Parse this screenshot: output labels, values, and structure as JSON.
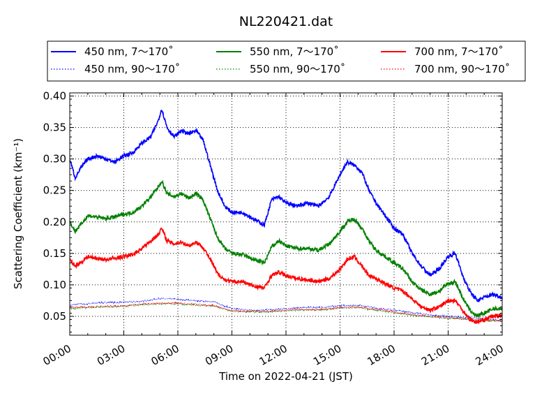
{
  "chart_data": {
    "type": "line",
    "title": "NL220421.dat",
    "xlabel": "Time on 2022-04-21 (JST)",
    "ylabel": "Scattering Coefficient (km⁻¹)",
    "xlim": [
      0,
      24
    ],
    "ylim": [
      0.02,
      0.405
    ],
    "x_ticks": [
      0,
      3,
      6,
      9,
      12,
      15,
      18,
      21,
      24
    ],
    "x_tick_labels": [
      "00:00",
      "03:00",
      "06:00",
      "09:00",
      "12:00",
      "15:00",
      "18:00",
      "21:00",
      "24:00"
    ],
    "y_ticks": [
      0.05,
      0.1,
      0.15,
      0.2,
      0.25,
      0.3,
      0.35,
      0.4
    ],
    "y_tick_labels": [
      "0.05",
      "0.10",
      "0.15",
      "0.20",
      "0.25",
      "0.30",
      "0.35",
      "0.40"
    ],
    "grid": true,
    "legend_position": "top, outside plot",
    "series": [
      {
        "name": "450 nm, 7～170˚",
        "color": "#0000ff",
        "style": "solid",
        "x": [
          0.0,
          0.3,
          0.6,
          1.0,
          1.5,
          2.0,
          2.5,
          3.0,
          3.5,
          4.0,
          4.5,
          4.9,
          5.1,
          5.4,
          5.8,
          6.2,
          6.6,
          7.0,
          7.4,
          7.8,
          8.2,
          8.6,
          9.0,
          9.6,
          10.2,
          10.8,
          11.2,
          11.6,
          12.0,
          12.6,
          13.2,
          13.8,
          14.4,
          15.0,
          15.4,
          15.8,
          16.2,
          16.6,
          17.0,
          17.5,
          18.0,
          18.5,
          19.0,
          19.5,
          20.0,
          20.5,
          21.0,
          21.4,
          21.8,
          22.2,
          22.6,
          23.0,
          23.5,
          24.0
        ],
        "y": [
          0.3,
          0.27,
          0.285,
          0.3,
          0.305,
          0.3,
          0.295,
          0.305,
          0.31,
          0.325,
          0.335,
          0.36,
          0.38,
          0.35,
          0.335,
          0.345,
          0.34,
          0.345,
          0.33,
          0.29,
          0.25,
          0.225,
          0.215,
          0.215,
          0.205,
          0.195,
          0.235,
          0.24,
          0.23,
          0.225,
          0.23,
          0.225,
          0.24,
          0.275,
          0.295,
          0.29,
          0.28,
          0.25,
          0.23,
          0.21,
          0.19,
          0.18,
          0.15,
          0.13,
          0.115,
          0.125,
          0.145,
          0.15,
          0.115,
          0.09,
          0.075,
          0.08,
          0.085,
          0.08
        ]
      },
      {
        "name": "550 nm, 7～170˚",
        "color": "#008000",
        "style": "solid",
        "x": [
          0.0,
          0.3,
          0.6,
          1.0,
          1.5,
          2.0,
          2.5,
          3.0,
          3.5,
          4.0,
          4.5,
          4.9,
          5.1,
          5.4,
          5.8,
          6.2,
          6.6,
          7.0,
          7.4,
          7.8,
          8.2,
          8.6,
          9.0,
          9.6,
          10.2,
          10.8,
          11.2,
          11.6,
          12.0,
          12.6,
          13.2,
          13.8,
          14.4,
          15.0,
          15.4,
          15.8,
          16.2,
          16.6,
          17.0,
          17.5,
          18.0,
          18.5,
          19.0,
          19.5,
          20.0,
          20.5,
          21.0,
          21.4,
          21.8,
          22.2,
          22.6,
          23.0,
          23.5,
          24.0
        ],
        "y": [
          0.2,
          0.185,
          0.195,
          0.21,
          0.208,
          0.205,
          0.208,
          0.212,
          0.215,
          0.225,
          0.24,
          0.255,
          0.265,
          0.245,
          0.24,
          0.245,
          0.238,
          0.245,
          0.235,
          0.205,
          0.175,
          0.158,
          0.15,
          0.148,
          0.14,
          0.135,
          0.16,
          0.17,
          0.162,
          0.158,
          0.158,
          0.155,
          0.165,
          0.185,
          0.2,
          0.205,
          0.19,
          0.17,
          0.155,
          0.145,
          0.135,
          0.125,
          0.105,
          0.092,
          0.085,
          0.09,
          0.102,
          0.105,
          0.08,
          0.06,
          0.05,
          0.055,
          0.062,
          0.062
        ]
      },
      {
        "name": "700 nm, 7～170˚",
        "color": "#ff0000",
        "style": "solid",
        "x": [
          0.0,
          0.3,
          0.6,
          1.0,
          1.5,
          2.0,
          2.5,
          3.0,
          3.5,
          4.0,
          4.5,
          4.9,
          5.1,
          5.4,
          5.8,
          6.2,
          6.6,
          7.0,
          7.4,
          7.8,
          8.2,
          8.6,
          9.0,
          9.6,
          10.2,
          10.8,
          11.2,
          11.6,
          12.0,
          12.6,
          13.2,
          13.8,
          14.4,
          15.0,
          15.4,
          15.8,
          16.2,
          16.6,
          17.0,
          17.5,
          18.0,
          18.5,
          19.0,
          19.5,
          20.0,
          20.5,
          21.0,
          21.4,
          21.8,
          22.2,
          22.6,
          23.0,
          23.5,
          24.0
        ],
        "y": [
          0.14,
          0.13,
          0.135,
          0.145,
          0.142,
          0.14,
          0.142,
          0.145,
          0.148,
          0.158,
          0.17,
          0.18,
          0.19,
          0.17,
          0.165,
          0.168,
          0.162,
          0.168,
          0.16,
          0.14,
          0.118,
          0.108,
          0.105,
          0.105,
          0.098,
          0.095,
          0.115,
          0.12,
          0.115,
          0.11,
          0.108,
          0.105,
          0.11,
          0.125,
          0.14,
          0.145,
          0.13,
          0.115,
          0.11,
          0.102,
          0.095,
          0.09,
          0.078,
          0.065,
          0.06,
          0.065,
          0.075,
          0.075,
          0.06,
          0.045,
          0.04,
          0.045,
          0.05,
          0.052
        ]
      },
      {
        "name": "450 nm, 90～170˚",
        "color": "#0000ff",
        "style": "dotted",
        "x": [
          0,
          1,
          2,
          3,
          4,
          5,
          6,
          7,
          8,
          9,
          10,
          11,
          12,
          13,
          14,
          15,
          16,
          17,
          18,
          19,
          20,
          21,
          22,
          23,
          24
        ],
        "y": [
          0.068,
          0.07,
          0.072,
          0.072,
          0.074,
          0.078,
          0.077,
          0.075,
          0.073,
          0.062,
          0.06,
          0.06,
          0.062,
          0.064,
          0.064,
          0.067,
          0.068,
          0.063,
          0.06,
          0.056,
          0.052,
          0.05,
          0.048,
          0.046,
          0.043
        ]
      },
      {
        "name": "550 nm, 90～170˚",
        "color": "#008000",
        "style": "dotted",
        "x": [
          0,
          1,
          2,
          3,
          4,
          5,
          6,
          7,
          8,
          9,
          10,
          11,
          12,
          13,
          14,
          15,
          16,
          17,
          18,
          19,
          20,
          21,
          22,
          23,
          24
        ],
        "y": [
          0.062,
          0.064,
          0.065,
          0.066,
          0.068,
          0.07,
          0.07,
          0.068,
          0.066,
          0.058,
          0.057,
          0.057,
          0.059,
          0.06,
          0.06,
          0.063,
          0.064,
          0.06,
          0.056,
          0.052,
          0.049,
          0.047,
          0.045,
          0.043,
          0.042
        ]
      },
      {
        "name": "700 nm, 90～170˚",
        "color": "#ff0000",
        "style": "dotted",
        "x": [
          0,
          1,
          2,
          3,
          4,
          5,
          6,
          7,
          8,
          9,
          10,
          11,
          12,
          13,
          14,
          15,
          16,
          17,
          18,
          19,
          20,
          21,
          22,
          23,
          24
        ],
        "y": [
          0.064,
          0.065,
          0.066,
          0.067,
          0.069,
          0.071,
          0.071,
          0.069,
          0.067,
          0.059,
          0.058,
          0.058,
          0.06,
          0.061,
          0.061,
          0.064,
          0.065,
          0.061,
          0.057,
          0.053,
          0.05,
          0.048,
          0.046,
          0.044,
          0.043
        ]
      }
    ]
  }
}
